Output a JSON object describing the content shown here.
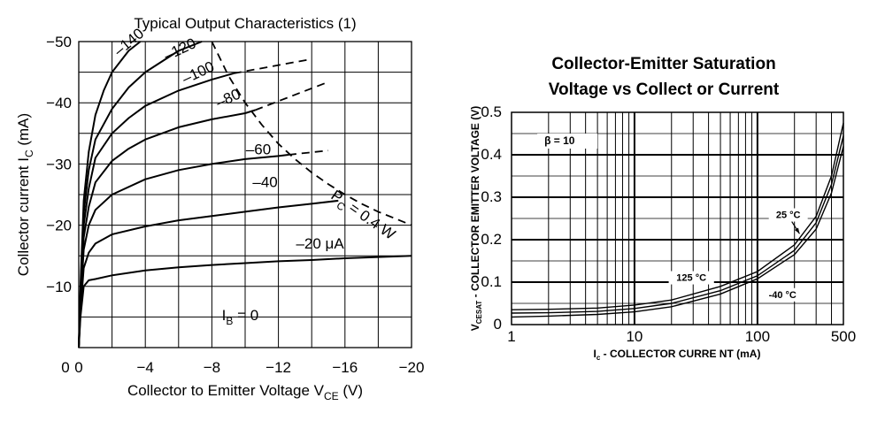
{
  "chart_data": [
    {
      "type": "line",
      "title": "Typical Output Characteristics (1)",
      "xlabel": {
        "main": "Collector to Emitter Voltage  V",
        "sub": "CE",
        "unit": "  (V)"
      },
      "ylabel": {
        "main": "Collector current  I",
        "sub": "C",
        "unit": "  (mA)"
      },
      "xlim": [
        0,
        -20
      ],
      "ylim": [
        0,
        -50
      ],
      "xticks": [
        {
          "value": 0,
          "label": "0"
        },
        {
          "value": -4,
          "label": "−4"
        },
        {
          "value": -8,
          "label": "−8"
        },
        {
          "value": -12,
          "label": "−12"
        },
        {
          "value": -16,
          "label": "−16"
        },
        {
          "value": -20,
          "label": "−20"
        }
      ],
      "yticks": [
        {
          "value": -10,
          "label": "−10"
        },
        {
          "value": -20,
          "label": "−20"
        },
        {
          "value": -30,
          "label": "−30"
        },
        {
          "value": -40,
          "label": "−40"
        },
        {
          "value": -50,
          "label": "−50"
        }
      ],
      "grid": true,
      "series": [
        {
          "name": "−20 μA",
          "label": "–20 μA",
          "label_at": [
            -14.5,
            -16.2
          ],
          "label_rotate": 0,
          "points": [
            [
              0,
              0
            ],
            [
              -0.1,
              -5
            ],
            [
              -0.3,
              -10
            ],
            [
              -0.6,
              -11
            ],
            [
              -1,
              -11.2
            ],
            [
              -2,
              -11.8
            ],
            [
              -4,
              -12.6
            ],
            [
              -6,
              -13.1
            ],
            [
              -8,
              -13.5
            ],
            [
              -10,
              -13.8
            ],
            [
              -12,
              -14.1
            ],
            [
              -14,
              -14.3
            ],
            [
              -16,
              -14.6
            ],
            [
              -18,
              -14.8
            ],
            [
              -20,
              -15
            ]
          ],
          "dashed_ext": []
        },
        {
          "name": "−40",
          "label": "–40",
          "label_at": [
            -11.2,
            -26.2
          ],
          "label_rotate": 0,
          "points": [
            [
              0,
              0
            ],
            [
              -0.1,
              -6
            ],
            [
              -0.3,
              -13
            ],
            [
              -0.6,
              -15.5
            ],
            [
              -1,
              -17
            ],
            [
              -2,
              -18.5
            ],
            [
              -4,
              -19.8
            ],
            [
              -6,
              -20.8
            ],
            [
              -8,
              -21.5
            ],
            [
              -10,
              -22.2
            ],
            [
              -12,
              -22.9
            ],
            [
              -14,
              -23.5
            ],
            [
              -15.6,
              -24
            ]
          ],
          "dashed_ext": []
        },
        {
          "name": "−60",
          "label": "–60",
          "label_at": [
            -10.8,
            -31.6
          ],
          "label_rotate": 0,
          "points": [
            [
              0,
              0
            ],
            [
              -0.1,
              -7
            ],
            [
              -0.3,
              -16
            ],
            [
              -0.6,
              -20
            ],
            [
              -1,
              -22.5
            ],
            [
              -2,
              -25
            ],
            [
              -4,
              -27.5
            ],
            [
              -6,
              -29
            ],
            [
              -8,
              -30
            ],
            [
              -10,
              -30.8
            ],
            [
              -12,
              -31.3
            ],
            [
              -12.6,
              -31.5
            ]
          ],
          "dashed_ext": [
            [
              -12.6,
              -31.5
            ],
            [
              -15,
              -32.2
            ]
          ]
        },
        {
          "name": "−80",
          "label": "–80",
          "label_at": [
            -9.1,
            -40
          ],
          "label_rotate": -25,
          "points": [
            [
              0,
              0
            ],
            [
              -0.1,
              -7.5
            ],
            [
              -0.3,
              -18
            ],
            [
              -0.6,
              -23
            ],
            [
              -1,
              -27
            ],
            [
              -2,
              -30.5
            ],
            [
              -3,
              -32.5
            ],
            [
              -4,
              -34
            ],
            [
              -6,
              -36
            ],
            [
              -8,
              -37.3
            ],
            [
              -10,
              -38.3
            ],
            [
              -10.6,
              -38.8
            ]
          ],
          "dashed_ext": [
            [
              -10.6,
              -38.8
            ],
            [
              -14.8,
              -43.2
            ]
          ]
        },
        {
          "name": "−100",
          "label": "–100",
          "label_at": [
            -7.3,
            -44.2
          ],
          "label_rotate": -25,
          "points": [
            [
              0,
              0
            ],
            [
              -0.1,
              -8
            ],
            [
              -0.3,
              -20
            ],
            [
              -0.6,
              -26
            ],
            [
              -1,
              -31
            ],
            [
              -2,
              -35
            ],
            [
              -3,
              -37.5
            ],
            [
              -4,
              -39.5
            ],
            [
              -6,
              -42
            ],
            [
              -8,
              -43.8
            ],
            [
              -9.3,
              -44.8
            ]
          ],
          "dashed_ext": [
            [
              -9.3,
              -44.8
            ],
            [
              -13.7,
              -47
            ]
          ]
        },
        {
          "name": "−120",
          "label": "–120",
          "label_at": [
            -6.2,
            -48
          ],
          "label_rotate": -25,
          "points": [
            [
              0,
              0
            ],
            [
              -0.1,
              -9
            ],
            [
              -0.3,
              -22
            ],
            [
              -0.6,
              -29
            ],
            [
              -1,
              -34
            ],
            [
              -2,
              -39
            ],
            [
              -3,
              -42.5
            ],
            [
              -4,
              -45
            ],
            [
              -6,
              -48.5
            ],
            [
              -7.4,
              -50
            ]
          ],
          "dashed_ext": []
        },
        {
          "name": "−140",
          "label": "–140",
          "label_at": [
            -3.2,
            -49.3
          ],
          "label_rotate": -40,
          "points": [
            [
              0,
              0
            ],
            [
              -0.1,
              -10
            ],
            [
              -0.3,
              -24
            ],
            [
              -0.6,
              -32
            ],
            [
              -1,
              -38
            ],
            [
              -1.5,
              -42
            ],
            [
              -2,
              -45
            ],
            [
              -3,
              -48.5
            ],
            [
              -3.7,
              -50
            ]
          ],
          "dashed_ext": []
        }
      ],
      "power_curve": {
        "label_main": "P",
        "label_sub": "C",
        "label_rest": " = 0.4 W",
        "label_at": [
          -15.1,
          -24.5
        ],
        "label_rotate": 35,
        "points": [
          [
            -8,
            -50
          ],
          [
            -9,
            -44.4
          ],
          [
            -10,
            -40
          ],
          [
            -11,
            -36.4
          ],
          [
            -12,
            -33.3
          ],
          [
            -13,
            -30.8
          ],
          [
            -14,
            -28.6
          ],
          [
            -15,
            -26.7
          ],
          [
            -16,
            -25
          ],
          [
            -17,
            -23.5
          ],
          [
            -18,
            -22.2
          ],
          [
            -19,
            -21.1
          ],
          [
            -20,
            -20
          ]
        ]
      },
      "annotation": {
        "main": "I",
        "sub": "B",
        "rest": " = 0",
        "at": [
          -8.6,
          -4.5
        ]
      }
    },
    {
      "type": "line",
      "title": "Collector-Emitter Saturation",
      "title2": "Voltage vs Collect or Current",
      "xlabel": {
        "main": "I",
        "sub": "c",
        "rest": " - COLLECTOR CURRE NT  (mA)"
      },
      "ylabel": {
        "main": "V",
        "sub": "CESAT",
        "rest": " - COLLECTOR EMITTER VOLTAGE (V)"
      },
      "xscale": "log",
      "xlim": [
        1,
        500
      ],
      "ylim": [
        0,
        0.5
      ],
      "xticks": [
        {
          "value": 1,
          "label": "1"
        },
        {
          "value": 10,
          "label": "10"
        },
        {
          "value": 100,
          "label": "100"
        },
        {
          "value": 500,
          "label": "500"
        }
      ],
      "yticks": [
        {
          "value": 0,
          "label": "0"
        },
        {
          "value": 0.1,
          "label": "0.1"
        },
        {
          "value": 0.2,
          "label": "0.2"
        },
        {
          "value": 0.3,
          "label": "0.3"
        },
        {
          "value": 0.4,
          "label": "0.4"
        },
        {
          "value": 0.5,
          "label": "0.5"
        }
      ],
      "grid": true,
      "beta_label": "β  = 10",
      "series": [
        {
          "name": "25 °C",
          "label_at": [
            178,
            0.251
          ],
          "arrow_to": [
            220,
            0.214
          ],
          "points": [
            [
              1,
              0.027
            ],
            [
              2,
              0.028
            ],
            [
              5,
              0.031
            ],
            [
              10,
              0.038
            ],
            [
              20,
              0.05
            ],
            [
              50,
              0.08
            ],
            [
              100,
              0.115
            ],
            [
              200,
              0.175
            ],
            [
              300,
              0.24
            ],
            [
              400,
              0.33
            ],
            [
              500,
              0.445
            ]
          ]
        },
        {
          "name": "125 °C",
          "label_at": [
            29,
            0.103
          ],
          "arrow_to": [],
          "points": [
            [
              1,
              0.018
            ],
            [
              2,
              0.02
            ],
            [
              5,
              0.024
            ],
            [
              10,
              0.03
            ],
            [
              20,
              0.042
            ],
            [
              50,
              0.072
            ],
            [
              100,
              0.108
            ],
            [
              200,
              0.165
            ],
            [
              300,
              0.225
            ],
            [
              400,
              0.31
            ],
            [
              500,
              0.42
            ]
          ]
        },
        {
          "name": "-40 °C",
          "label_at": [
            160,
            0.063
          ],
          "arrow_to": [],
          "points": [
            [
              1,
              0.035
            ],
            [
              2,
              0.036
            ],
            [
              5,
              0.039
            ],
            [
              10,
              0.046
            ],
            [
              20,
              0.058
            ],
            [
              50,
              0.09
            ],
            [
              100,
              0.125
            ],
            [
              200,
              0.188
            ],
            [
              300,
              0.255
            ],
            [
              400,
              0.35
            ],
            [
              500,
              0.475
            ]
          ]
        }
      ]
    }
  ]
}
